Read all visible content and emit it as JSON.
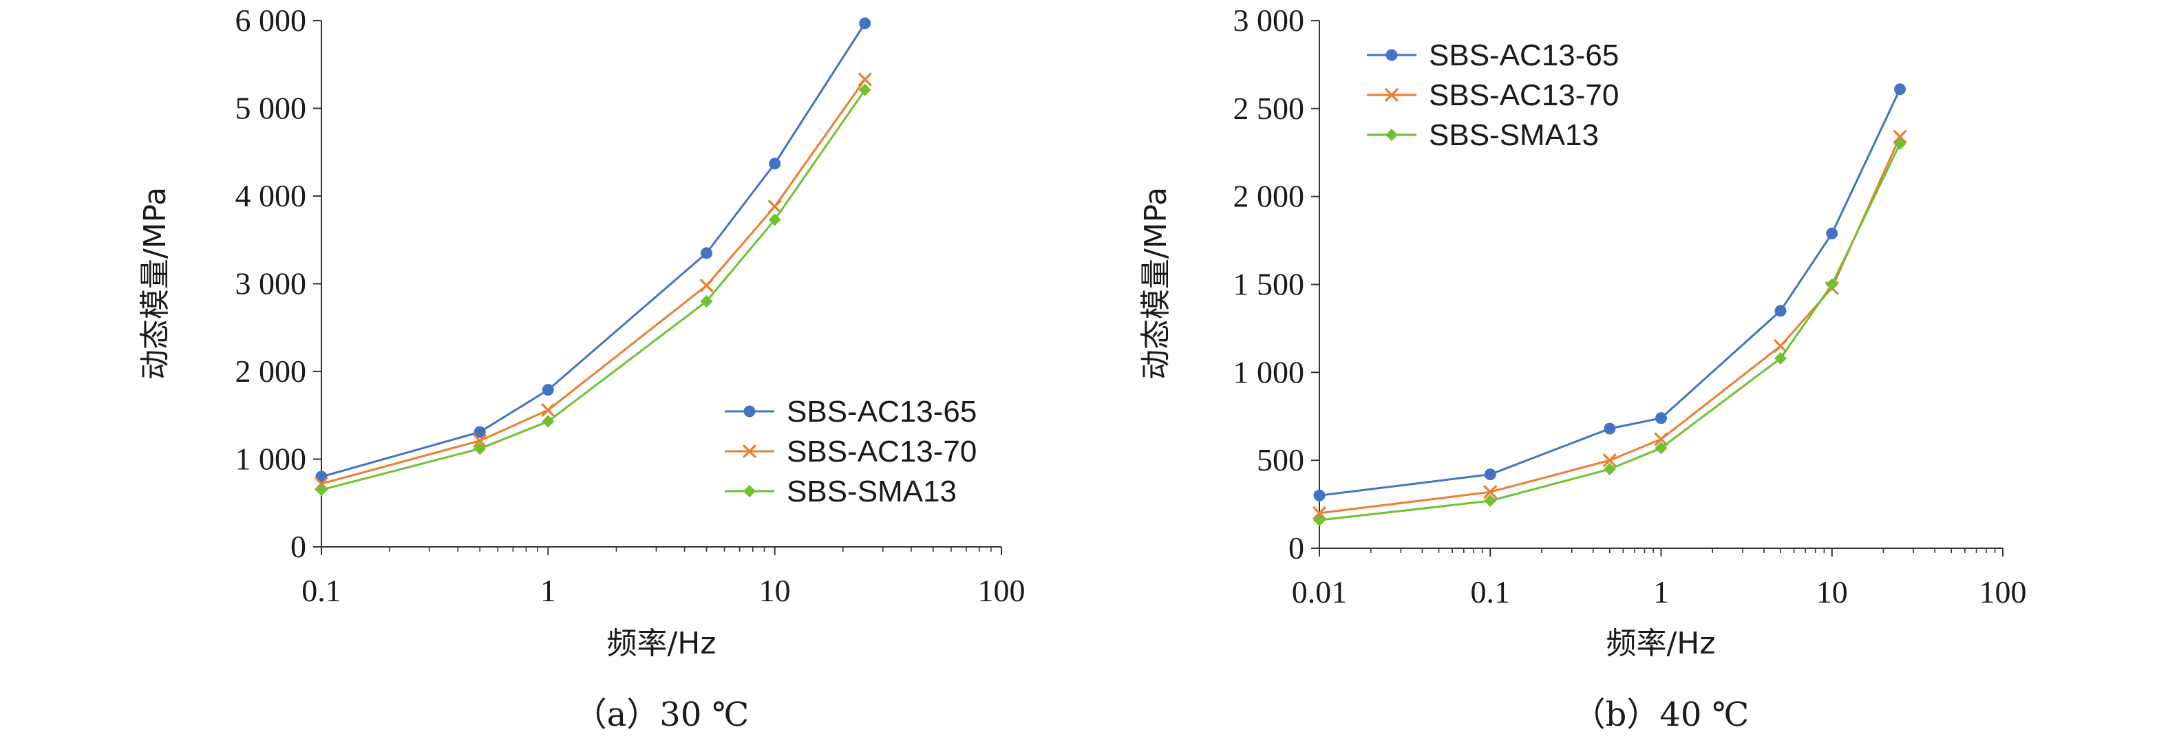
{
  "chart_data": [
    {
      "type": "line",
      "caption": "（a）30 ℃",
      "xlabel": "频率/Hz",
      "ylabel": "动态模量/MPa",
      "xscale": "log",
      "xlim": [
        0.1,
        100
      ],
      "ylim": [
        0,
        6000
      ],
      "xticks": [
        0.1,
        1,
        10,
        100
      ],
      "xtick_labels": [
        "0.1",
        "1",
        "10",
        "100"
      ],
      "yticks": [
        0,
        1000,
        2000,
        3000,
        4000,
        5000,
        6000
      ],
      "ytick_labels": [
        "0",
        "1 000",
        "2 000",
        "3 000",
        "4 000",
        "5 000",
        "6 000"
      ],
      "grid": false,
      "legend_position": "lower-right",
      "series": [
        {
          "name": "SBS-AC13-65",
          "color": "#4472c4",
          "marker": "circle",
          "x": [
            0.1,
            0.5,
            1,
            5,
            10,
            25
          ],
          "y": [
            800,
            1310,
            1790,
            3350,
            4370,
            5970
          ]
        },
        {
          "name": "SBS-AC13-70",
          "color": "#ed7d31",
          "marker": "x",
          "x": [
            0.1,
            0.5,
            1,
            5,
            10,
            25
          ],
          "y": [
            720,
            1210,
            1560,
            2980,
            3880,
            5330
          ]
        },
        {
          "name": "SBS-SMA13",
          "color": "#70c030",
          "marker": "diamond",
          "x": [
            0.1,
            0.5,
            1,
            5,
            10,
            25
          ],
          "y": [
            650,
            1120,
            1430,
            2800,
            3730,
            5210
          ]
        }
      ]
    },
    {
      "type": "line",
      "caption": "（b）40 ℃",
      "xlabel": "频率/Hz",
      "ylabel": "动态模量/MPa",
      "xscale": "log",
      "xlim": [
        0.01,
        100
      ],
      "ylim": [
        0,
        3000
      ],
      "xticks": [
        0.01,
        0.1,
        1,
        10,
        100
      ],
      "xtick_labels": [
        "0.01",
        "0.1",
        "1",
        "10",
        "100"
      ],
      "yticks": [
        0,
        500,
        1000,
        1500,
        2000,
        2500,
        3000
      ],
      "ytick_labels": [
        "0",
        "500",
        "1 000",
        "1 500",
        "2 000",
        "2 500",
        "3 000"
      ],
      "grid": false,
      "legend_position": "top-left",
      "series": [
        {
          "name": "SBS-AC13-65",
          "color": "#4472c4",
          "marker": "circle",
          "x": [
            0.01,
            0.1,
            0.5,
            1,
            5,
            10,
            25
          ],
          "y": [
            300,
            420,
            680,
            740,
            1350,
            1790,
            2610
          ]
        },
        {
          "name": "SBS-AC13-70",
          "color": "#ed7d31",
          "marker": "x",
          "x": [
            0.01,
            0.1,
            0.5,
            1,
            5,
            10,
            25
          ],
          "y": [
            200,
            320,
            500,
            620,
            1150,
            1480,
            2340
          ]
        },
        {
          "name": "SBS-SMA13",
          "color": "#70c030",
          "marker": "diamond",
          "x": [
            0.01,
            0.1,
            0.5,
            1,
            5,
            10,
            25
          ],
          "y": [
            160,
            270,
            450,
            570,
            1080,
            1500,
            2300
          ]
        }
      ]
    }
  ]
}
